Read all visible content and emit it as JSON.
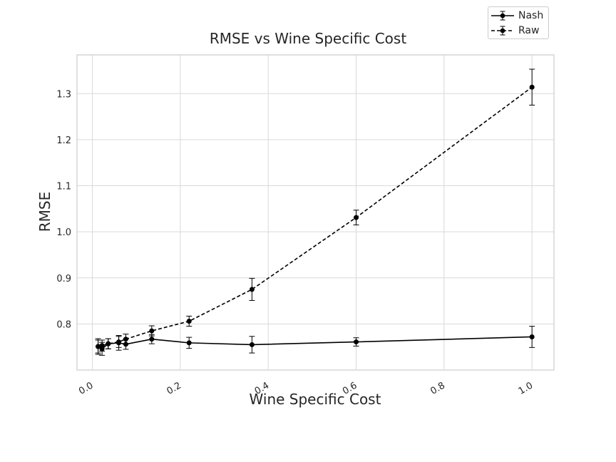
{
  "chart_data": {
    "type": "line",
    "title": "RMSE vs Wine Specific Cost",
    "xlabel": "Wine Specific Cost",
    "ylabel": "RMSE",
    "xlim": [
      -0.035,
      1.05
    ],
    "ylim": [
      0.7,
      1.384
    ],
    "x_ticks": [
      0.0,
      0.2,
      0.4,
      0.6,
      0.8,
      1.0
    ],
    "x_tick_labels": [
      "0.0",
      "0.2",
      "0.4",
      "0.6",
      "0.8",
      "1.0"
    ],
    "y_ticks": [
      0.8,
      0.9,
      1.0,
      1.1,
      1.2,
      1.3
    ],
    "y_tick_labels": [
      "0.8",
      "0.9",
      "1.0",
      "1.1",
      "1.2",
      "1.3"
    ],
    "grid": true,
    "legend_position": "top-right",
    "series": [
      {
        "name": "Nash",
        "style": "solid",
        "color": "#000000",
        "x": [
          0.013,
          0.022,
          0.036,
          0.06,
          0.076,
          0.135,
          0.22,
          0.363,
          0.6,
          1.0
        ],
        "y": [
          0.751,
          0.746,
          0.757,
          0.759,
          0.756,
          0.767,
          0.759,
          0.755,
          0.761,
          0.772
        ],
        "err": [
          0.014,
          0.014,
          0.011,
          0.016,
          0.011,
          0.01,
          0.012,
          0.018,
          0.009,
          0.023
        ]
      },
      {
        "name": "Raw",
        "style": "dashed",
        "color": "#000000",
        "x": [
          0.013,
          0.022,
          0.036,
          0.06,
          0.076,
          0.135,
          0.22,
          0.363,
          0.6,
          1.0
        ],
        "y": [
          0.751,
          0.753,
          0.757,
          0.761,
          0.767,
          0.785,
          0.806,
          0.875,
          1.031,
          1.314
        ],
        "err": [
          0.017,
          0.012,
          0.011,
          0.012,
          0.011,
          0.011,
          0.011,
          0.024,
          0.016,
          0.039
        ]
      }
    ]
  }
}
